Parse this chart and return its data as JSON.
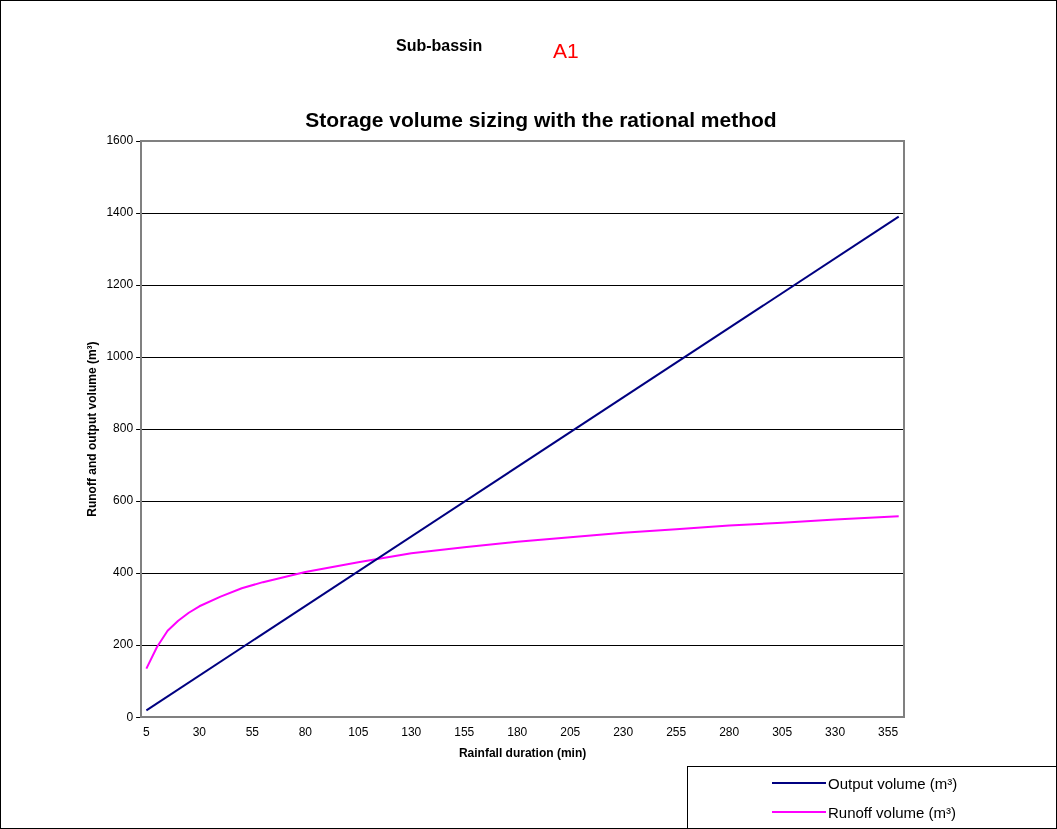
{
  "chart_data": {
    "type": "line",
    "title": "Storage volume sizing with the rational method",
    "subtitle": "Sub-bassin",
    "annotations": [
      "A1"
    ],
    "xlabel": "Rainfall duration (min)",
    "ylabel": "Runoff and output volume (m³)",
    "xlim": [
      2.5,
      362.5
    ],
    "xticks": [
      5,
      30,
      55,
      80,
      105,
      130,
      155,
      180,
      205,
      230,
      255,
      280,
      305,
      330,
      355
    ],
    "ylim": [
      0,
      1600
    ],
    "yticks": [
      0,
      200,
      400,
      600,
      800,
      1000,
      1200,
      1400,
      1600
    ],
    "grid": "y",
    "legend": "bottom right",
    "marker": "none",
    "line_style": "solid",
    "series": [
      {
        "name": "Output volume (m³)",
        "color": "#000080",
        "x": [
          5,
          360
        ],
        "values": [
          19,
          1390
        ]
      },
      {
        "name": "Runoff volume  (m³)",
        "color": "#ff00ff",
        "x": [
          5,
          10,
          15,
          20,
          25,
          30,
          40,
          50,
          60,
          80,
          105,
          130,
          155,
          180,
          205,
          230,
          255,
          280,
          305,
          330,
          360
        ],
        "values": [
          135,
          195,
          240,
          268,
          290,
          308,
          335,
          358,
          375,
          403,
          430,
          455,
          472,
          487,
          500,
          512,
          522,
          532,
          540,
          549,
          558
        ]
      }
    ]
  }
}
